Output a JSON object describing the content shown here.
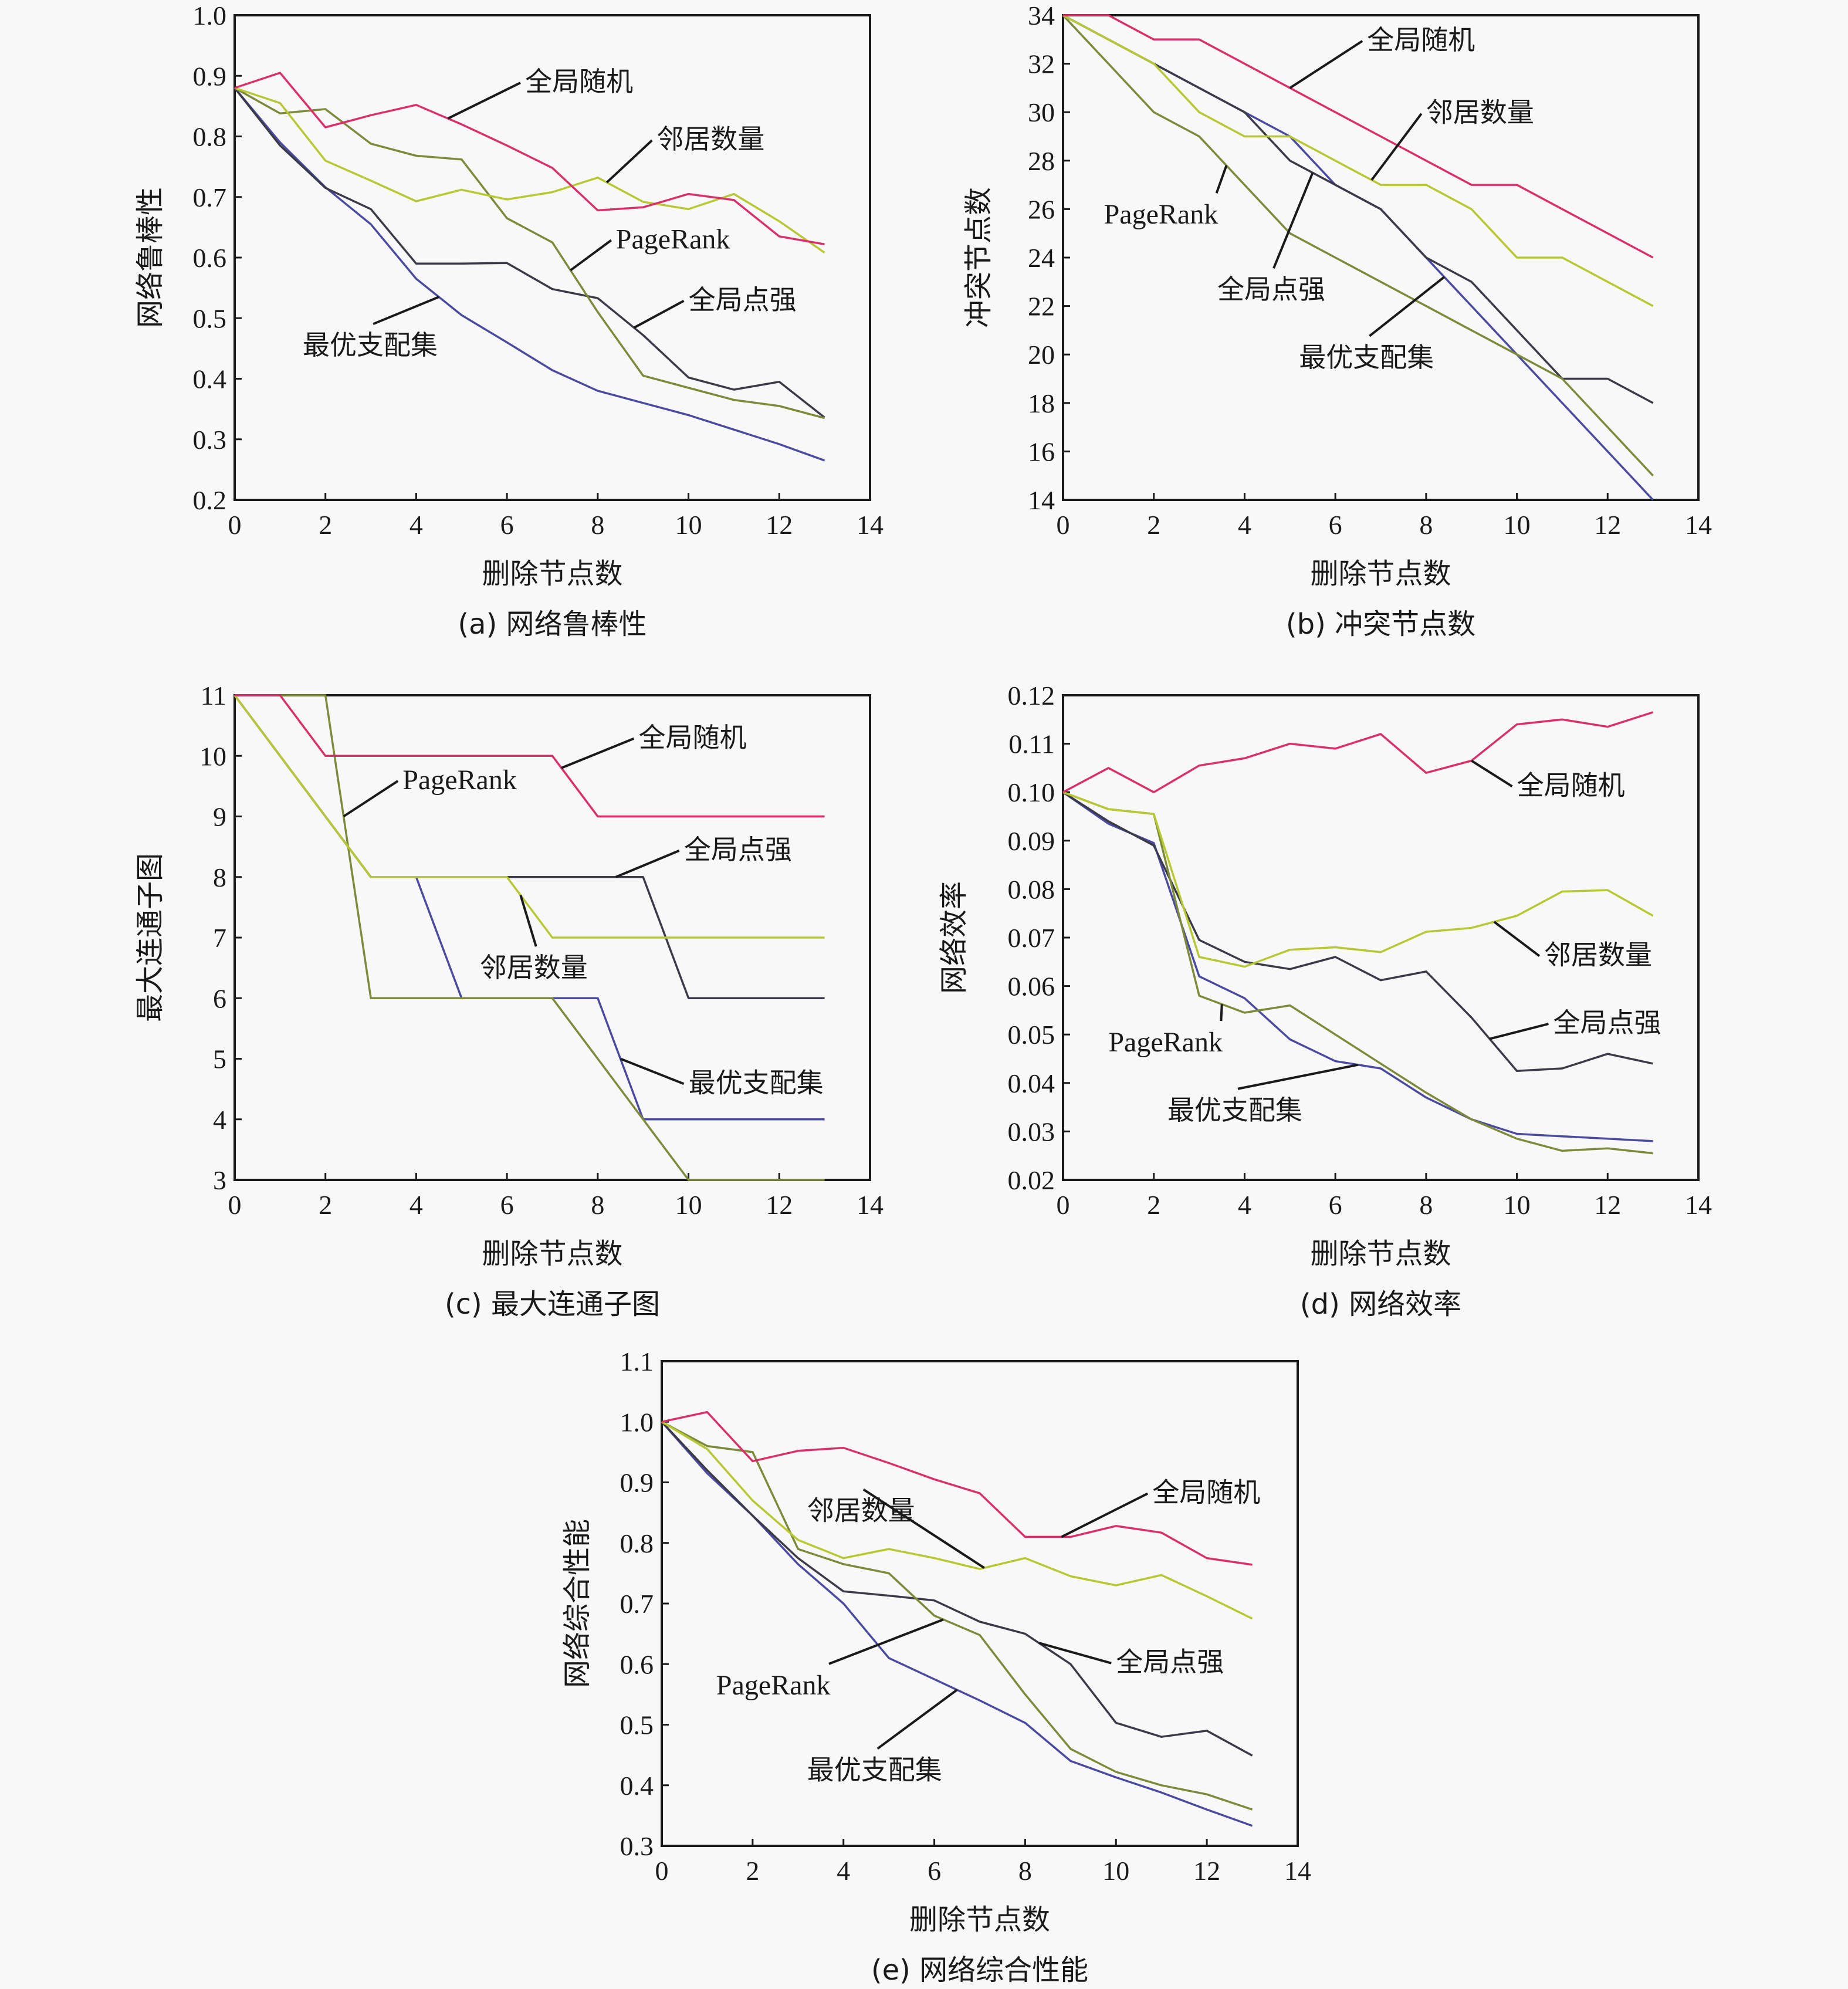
{
  "figure": {
    "colors": {
      "全局随机": "#d9306a",
      "邻居数量": "#b8c832",
      "PageRank": "#7d8a3a",
      "全局点强": "#3a3a48",
      "最优支配集": "#4a4aa0"
    }
  },
  "chart_data": [
    {
      "id": "a",
      "type": "line",
      "title": "(a) 网络鲁棒性",
      "xlabel": "删除节点数",
      "ylabel": "网络鲁棒性",
      "xlim": [
        0,
        14
      ],
      "ylim": [
        0.2,
        1.0
      ],
      "xticks": [
        0,
        2,
        4,
        6,
        8,
        10,
        12,
        14
      ],
      "xtick_labels": [
        "0",
        "2",
        "4",
        "6",
        "8",
        "10",
        "12",
        "14"
      ],
      "yticks": [
        0.2,
        0.3,
        0.4,
        0.5,
        0.6,
        0.7,
        0.8,
        0.9,
        1.0
      ],
      "ytick_labels": [
        "0.2",
        "0.3",
        "0.4",
        "0.5",
        "0.6",
        "0.7",
        "0.8",
        "0.9",
        "1.0"
      ],
      "grid": false,
      "legend": "inline-annotations",
      "x": [
        0,
        1,
        2,
        3,
        4,
        5,
        6,
        7,
        8,
        9,
        10,
        11,
        12,
        13
      ],
      "series": [
        {
          "name": "全局随机",
          "values": [
            0.88,
            0.905,
            0.815,
            0.835,
            0.852,
            0.82,
            0.785,
            0.748,
            0.678,
            0.683,
            0.705,
            0.695,
            0.635,
            0.622
          ]
        },
        {
          "name": "邻居数量",
          "values": [
            0.88,
            0.855,
            0.76,
            0.727,
            0.693,
            0.712,
            0.696,
            0.708,
            0.732,
            0.692,
            0.68,
            0.705,
            0.66,
            0.608
          ]
        },
        {
          "name": "PageRank",
          "values": [
            0.88,
            0.838,
            0.845,
            0.788,
            0.768,
            0.762,
            0.665,
            0.625,
            0.51,
            0.405,
            0.385,
            0.365,
            0.355,
            0.335
          ]
        },
        {
          "name": "全局点强",
          "values": [
            0.88,
            0.785,
            0.715,
            0.68,
            0.59,
            0.59,
            0.591,
            0.548,
            0.533,
            0.472,
            0.402,
            0.382,
            0.395,
            0.336
          ]
        },
        {
          "name": "最优支配集",
          "values": [
            0.88,
            0.79,
            0.716,
            0.655,
            0.565,
            0.505,
            0.46,
            0.414,
            0.38,
            0.36,
            0.34,
            0.316,
            0.292,
            0.265
          ]
        }
      ],
      "annotations": [
        {
          "text": "全局随机",
          "series": "全局随机",
          "at_x": 4.7,
          "label_x": 6.4,
          "label_y": 0.875
        },
        {
          "text": "邻居数量",
          "series": "邻居数量",
          "at_x": 8.2,
          "label_x": 9.3,
          "label_y": 0.78
        },
        {
          "text": "PageRank",
          "series": "PageRank",
          "at_x": 7.4,
          "label_x": 8.4,
          "label_y": 0.615
        },
        {
          "text": "全局点强",
          "series": "全局点强",
          "at_x": 8.8,
          "label_x": 10.0,
          "label_y": 0.515
        },
        {
          "text": "最优支配集",
          "series": "最优支配集",
          "at_x": 4.5,
          "label_x": 1.5,
          "label_y": 0.44
        }
      ]
    },
    {
      "id": "b",
      "type": "line",
      "title": "(b) 冲突节点数",
      "xlabel": "删除节点数",
      "ylabel": "冲突节点数",
      "xlim": [
        0,
        14
      ],
      "ylim": [
        14,
        34
      ],
      "xticks": [
        0,
        2,
        4,
        6,
        8,
        10,
        12,
        14
      ],
      "xtick_labels": [
        "0",
        "2",
        "4",
        "6",
        "8",
        "10",
        "12",
        "14"
      ],
      "yticks": [
        14,
        16,
        18,
        20,
        22,
        24,
        26,
        28,
        30,
        32,
        34
      ],
      "ytick_labels": [
        "14",
        "16",
        "18",
        "20",
        "22",
        "24",
        "26",
        "28",
        "30",
        "32",
        "34"
      ],
      "grid": false,
      "legend": "inline-annotations",
      "x": [
        0,
        1,
        2,
        3,
        4,
        5,
        6,
        7,
        8,
        9,
        10,
        11,
        12,
        13
      ],
      "series": [
        {
          "name": "全局随机",
          "values": [
            34,
            34,
            33,
            33,
            32,
            31,
            30,
            29,
            28,
            27,
            27,
            26,
            25,
            24
          ]
        },
        {
          "name": "邻居数量",
          "values": [
            34,
            33,
            32,
            30,
            29,
            29,
            28,
            27,
            27,
            26,
            24,
            24,
            23,
            22
          ]
        },
        {
          "name": "PageRank",
          "values": [
            34,
            32,
            30,
            29,
            27,
            25,
            24,
            23,
            22,
            21,
            20,
            19,
            17,
            15
          ]
        },
        {
          "name": "全局点强",
          "values": [
            34,
            33,
            32,
            31,
            30,
            28,
            27,
            26,
            24,
            23,
            21,
            19,
            19,
            18
          ]
        },
        {
          "name": "最优支配集",
          "values": [
            34,
            33,
            32,
            31,
            30,
            29,
            27,
            26,
            24,
            22,
            20,
            18,
            16,
            14
          ]
        }
      ],
      "annotations": [
        {
          "text": "全局随机",
          "series": "全局随机",
          "at_x": 5.0,
          "label_x": 6.7,
          "label_y": 32.6
        },
        {
          "text": "邻居数量",
          "series": "邻居数量",
          "at_x": 6.8,
          "label_x": 8.0,
          "label_y": 29.6
        },
        {
          "text": "PageRank",
          "series": "PageRank",
          "at_x": 3.6,
          "label_x": 0.9,
          "label_y": 25.4
        },
        {
          "text": "全局点强",
          "series": "全局点强",
          "at_x": 5.5,
          "label_x": 3.4,
          "label_y": 22.3
        },
        {
          "text": "最优支配集",
          "series": "最优支配集",
          "at_x": 8.4,
          "label_x": 5.2,
          "label_y": 19.5
        }
      ]
    },
    {
      "id": "c",
      "type": "line",
      "title": "(c) 最大连通子图",
      "xlabel": "删除节点数",
      "ylabel": "最大连通子图",
      "xlim": [
        0,
        14
      ],
      "ylim": [
        3,
        11
      ],
      "xticks": [
        0,
        2,
        4,
        6,
        8,
        10,
        12,
        14
      ],
      "xtick_labels": [
        "0",
        "2",
        "4",
        "6",
        "8",
        "10",
        "12",
        "14"
      ],
      "yticks": [
        3,
        4,
        5,
        6,
        7,
        8,
        9,
        10,
        11
      ],
      "ytick_labels": [
        "3",
        "4",
        "5",
        "6",
        "7",
        "8",
        "9",
        "10",
        "11"
      ],
      "grid": false,
      "legend": "inline-annotations",
      "x": [
        0,
        1,
        2,
        3,
        4,
        5,
        6,
        7,
        8,
        9,
        10,
        11,
        12,
        13
      ],
      "series": [
        {
          "name": "全局随机",
          "values": [
            11,
            11,
            10,
            10,
            10,
            10,
            10,
            10,
            9,
            9,
            9,
            9,
            9,
            9
          ]
        },
        {
          "name": "邻居数量",
          "values": [
            11,
            10,
            9,
            8,
            8,
            8,
            8,
            7,
            7,
            7,
            7,
            7,
            7,
            7
          ]
        },
        {
          "name": "PageRank",
          "values": [
            11,
            11,
            11,
            6,
            6,
            6,
            6,
            6,
            5,
            4,
            3,
            3,
            3,
            3
          ]
        },
        {
          "name": "全局点强",
          "values": [
            11,
            10,
            9,
            8,
            8,
            8,
            8,
            8,
            8,
            8,
            6,
            6,
            6,
            6
          ]
        },
        {
          "name": "最优支配集",
          "values": [
            11,
            10,
            9,
            8,
            8,
            6,
            6,
            6,
            6,
            4,
            4,
            4,
            4,
            4
          ]
        }
      ],
      "annotations": [
        {
          "text": "全局随机",
          "series": "全局随机",
          "at_x": 7.2,
          "label_x": 8.9,
          "label_y": 10.15
        },
        {
          "text": "PageRank",
          "series": "PageRank",
          "at_x": 2.4,
          "label_x": 3.7,
          "label_y": 9.45
        },
        {
          "text": "全局点强",
          "series": "全局点强",
          "at_x": 8.4,
          "label_x": 9.9,
          "label_y": 8.3
        },
        {
          "text": "邻居数量",
          "series": "邻居数量",
          "at_x": 6.3,
          "label_x": 5.4,
          "label_y": 6.35
        },
        {
          "text": "最优支配集",
          "series": "最优支配集",
          "at_x": 8.5,
          "label_x": 10.0,
          "label_y": 4.45
        }
      ]
    },
    {
      "id": "d",
      "type": "line",
      "title": "(d) 网络效率",
      "xlabel": "删除节点数",
      "ylabel": "网络效率",
      "xlim": [
        0,
        14
      ],
      "ylim": [
        0.02,
        0.12
      ],
      "xticks": [
        0,
        2,
        4,
        6,
        8,
        10,
        12,
        14
      ],
      "xtick_labels": [
        "0",
        "2",
        "4",
        "6",
        "8",
        "10",
        "12",
        "14"
      ],
      "yticks": [
        0.02,
        0.03,
        0.04,
        0.05,
        0.06,
        0.07,
        0.08,
        0.09,
        0.1,
        0.11,
        0.12
      ],
      "ytick_labels": [
        "0.02",
        "0.03",
        "0.04",
        "0.05",
        "0.06",
        "0.07",
        "0.08",
        "0.09",
        "0.10",
        "0.11",
        "0.12"
      ],
      "grid": false,
      "legend": "inline-annotations",
      "x": [
        0,
        1,
        2,
        3,
        4,
        5,
        6,
        7,
        8,
        9,
        10,
        11,
        12,
        13
      ],
      "series": [
        {
          "name": "全局随机",
          "values": [
            0.1,
            0.105,
            0.1,
            0.1055,
            0.107,
            0.11,
            0.109,
            0.112,
            0.104,
            0.1065,
            0.114,
            0.115,
            0.1135,
            0.1165
          ]
        },
        {
          "name": "邻居数量",
          "values": [
            0.1,
            0.0965,
            0.0955,
            0.066,
            0.064,
            0.0675,
            0.068,
            0.067,
            0.0712,
            0.072,
            0.0745,
            0.0795,
            0.0798,
            0.0745
          ]
        },
        {
          "name": "PageRank",
          "values": [
            0.1,
            0.0965,
            0.0955,
            0.058,
            0.0545,
            0.056,
            0.05,
            0.044,
            0.038,
            0.0325,
            0.0285,
            0.026,
            0.0265,
            0.0255
          ]
        },
        {
          "name": "全局点强",
          "values": [
            0.1,
            0.094,
            0.089,
            0.0695,
            0.065,
            0.0635,
            0.066,
            0.0612,
            0.063,
            0.0535,
            0.0425,
            0.043,
            0.046,
            0.044
          ]
        },
        {
          "name": "最优支配集",
          "values": [
            0.1,
            0.0935,
            0.0895,
            0.062,
            0.0575,
            0.049,
            0.0445,
            0.043,
            0.037,
            0.0325,
            0.0295,
            0.029,
            0.0285,
            0.028
          ]
        }
      ],
      "annotations": [
        {
          "text": "全局随机",
          "series": "全局随机",
          "at_x": 9.0,
          "label_x": 10.0,
          "label_y": 0.0995
        },
        {
          "text": "邻居数量",
          "series": "邻居数量",
          "at_x": 9.5,
          "label_x": 10.6,
          "label_y": 0.0645
        },
        {
          "text": "全局点强",
          "series": "全局点强",
          "at_x": 9.4,
          "label_x": 10.8,
          "label_y": 0.0505
        },
        {
          "text": "PageRank",
          "series": "PageRank",
          "at_x": 3.5,
          "label_x": 1.0,
          "label_y": 0.0465
        },
        {
          "text": "最优支配集",
          "series": "最优支配集",
          "at_x": 6.5,
          "label_x": 2.3,
          "label_y": 0.0325
        }
      ]
    },
    {
      "id": "e",
      "type": "line",
      "title": "(e) 网络综合性能",
      "xlabel": "删除节点数",
      "ylabel": "网络综合性能",
      "xlim": [
        0,
        14
      ],
      "ylim": [
        0.3,
        1.1
      ],
      "xticks": [
        0,
        2,
        4,
        6,
        8,
        10,
        12,
        14
      ],
      "xtick_labels": [
        "0",
        "2",
        "4",
        "6",
        "8",
        "10",
        "12",
        "14"
      ],
      "yticks": [
        0.3,
        0.4,
        0.5,
        0.6,
        0.7,
        0.8,
        0.9,
        1.0,
        1.1
      ],
      "ytick_labels": [
        "0.3",
        "0.4",
        "0.5",
        "0.6",
        "0.7",
        "0.8",
        "0.9",
        "1.0",
        "1.1"
      ],
      "grid": false,
      "legend": "inline-annotations",
      "x": [
        0,
        1,
        2,
        3,
        4,
        5,
        6,
        7,
        8,
        9,
        10,
        11,
        12,
        13
      ],
      "series": [
        {
          "name": "全局随机",
          "values": [
            1.0,
            1.016,
            0.935,
            0.952,
            0.957,
            0.932,
            0.905,
            0.882,
            0.81,
            0.81,
            0.828,
            0.817,
            0.775,
            0.764
          ]
        },
        {
          "name": "邻居数量",
          "values": [
            1.0,
            0.955,
            0.87,
            0.805,
            0.775,
            0.79,
            0.775,
            0.757,
            0.775,
            0.745,
            0.73,
            0.747,
            0.712,
            0.675
          ]
        },
        {
          "name": "PageRank",
          "values": [
            1.0,
            0.96,
            0.95,
            0.79,
            0.765,
            0.75,
            0.68,
            0.648,
            0.55,
            0.46,
            0.422,
            0.4,
            0.385,
            0.36
          ]
        },
        {
          "name": "全局点强",
          "values": [
            1.0,
            0.92,
            0.845,
            0.775,
            0.72,
            0.713,
            0.705,
            0.67,
            0.65,
            0.6,
            0.503,
            0.48,
            0.49,
            0.449
          ]
        },
        {
          "name": "最优支配集",
          "values": [
            1.0,
            0.915,
            0.845,
            0.765,
            0.7,
            0.61,
            0.575,
            0.54,
            0.503,
            0.44,
            0.413,
            0.388,
            0.36,
            0.333
          ]
        }
      ],
      "annotations": [
        {
          "text": "全局随机",
          "series": "全局随机",
          "at_x": 8.8,
          "label_x": 10.8,
          "label_y": 0.868
        },
        {
          "text": "邻居数量",
          "series": "邻居数量",
          "at_x": 7.1,
          "label_x": 3.2,
          "label_y": 0.838
        },
        {
          "text": "全局点强",
          "series": "全局点强",
          "at_x": 8.3,
          "label_x": 10.0,
          "label_y": 0.588
        },
        {
          "text": "PageRank",
          "series": "PageRank",
          "at_x": 6.2,
          "label_x": 1.2,
          "label_y": 0.55
        },
        {
          "text": "最优支配集",
          "series": "最优支配集",
          "at_x": 6.5,
          "label_x": 3.2,
          "label_y": 0.41
        }
      ]
    }
  ]
}
